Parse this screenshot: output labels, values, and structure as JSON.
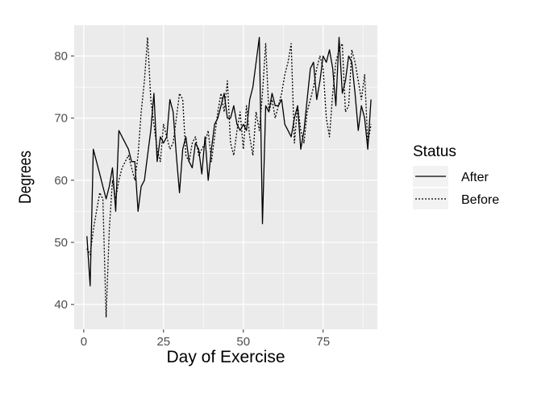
{
  "chart_data": {
    "type": "line",
    "title": "",
    "xlabel": "Day of Exercise",
    "ylabel": "Degrees",
    "xlim": [
      -3,
      92
    ],
    "ylim": [
      36,
      85
    ],
    "x_ticks": [
      0,
      25,
      50,
      75
    ],
    "y_ticks": [
      40,
      50,
      60,
      70,
      80
    ],
    "x_tick_labels": [
      "0",
      "25",
      "50",
      "75"
    ],
    "y_tick_labels": [
      "40",
      "50",
      "60",
      "70",
      "80"
    ],
    "grid": true,
    "legend": {
      "title": "Status",
      "placement": "right",
      "entries": [
        "After",
        "Before"
      ]
    },
    "series": [
      {
        "name": "After",
        "linetype": "solid",
        "values": [
          [
            1,
            51
          ],
          [
            2,
            43
          ],
          [
            3,
            65
          ],
          [
            4,
            63
          ],
          [
            5,
            61
          ],
          [
            6,
            59
          ],
          [
            7,
            57
          ],
          [
            8,
            59
          ],
          [
            9,
            62
          ],
          [
            10,
            55
          ],
          [
            11,
            68
          ],
          [
            12,
            67
          ],
          [
            13,
            66
          ],
          [
            14,
            65
          ],
          [
            15,
            63
          ],
          [
            16,
            63
          ],
          [
            17,
            55
          ],
          [
            18,
            59
          ],
          [
            19,
            60
          ],
          [
            20,
            64
          ],
          [
            21,
            68
          ],
          [
            22,
            74
          ],
          [
            23,
            63
          ],
          [
            24,
            67
          ],
          [
            25,
            66
          ],
          [
            26,
            67
          ],
          [
            27,
            73
          ],
          [
            28,
            71
          ],
          [
            29,
            64
          ],
          [
            30,
            58
          ],
          [
            31,
            65
          ],
          [
            32,
            67
          ],
          [
            33,
            63
          ],
          [
            34,
            62
          ],
          [
            35,
            66
          ],
          [
            36,
            65
          ],
          [
            37,
            61
          ],
          [
            38,
            67
          ],
          [
            39,
            60
          ],
          [
            40,
            65
          ],
          [
            41,
            69
          ],
          [
            42,
            70
          ],
          [
            43,
            72
          ],
          [
            44,
            74
          ],
          [
            45,
            70
          ],
          [
            46,
            70
          ],
          [
            47,
            72
          ],
          [
            48,
            69
          ],
          [
            49,
            68
          ],
          [
            50,
            69
          ],
          [
            51,
            68
          ],
          [
            52,
            73
          ],
          [
            53,
            75
          ],
          [
            54,
            79
          ],
          [
            55,
            83
          ],
          [
            56,
            53
          ],
          [
            57,
            72
          ],
          [
            58,
            71
          ],
          [
            59,
            74
          ],
          [
            60,
            72
          ],
          [
            61,
            72
          ],
          [
            62,
            73
          ],
          [
            63,
            69
          ],
          [
            64,
            68
          ],
          [
            65,
            67
          ],
          [
            66,
            70
          ],
          [
            67,
            72
          ],
          [
            68,
            65
          ],
          [
            69,
            68
          ],
          [
            70,
            73
          ],
          [
            71,
            78
          ],
          [
            72,
            79
          ],
          [
            73,
            73
          ],
          [
            74,
            76
          ],
          [
            75,
            80
          ],
          [
            76,
            79
          ],
          [
            77,
            81
          ],
          [
            78,
            78
          ],
          [
            79,
            72
          ],
          [
            80,
            83
          ],
          [
            81,
            74
          ],
          [
            82,
            76
          ],
          [
            83,
            80
          ],
          [
            84,
            79
          ],
          [
            85,
            74
          ],
          [
            86,
            68
          ],
          [
            87,
            72
          ],
          [
            88,
            70
          ],
          [
            89,
            65
          ],
          [
            90,
            73
          ]
        ]
      },
      {
        "name": "Before",
        "linetype": "dotted",
        "values": [
          [
            1,
            49
          ],
          [
            2,
            48
          ],
          [
            3,
            52
          ],
          [
            4,
            55
          ],
          [
            5,
            58
          ],
          [
            6,
            57
          ],
          [
            7,
            38
          ],
          [
            8,
            52
          ],
          [
            9,
            60
          ],
          [
            10,
            57
          ],
          [
            11,
            60
          ],
          [
            12,
            62
          ],
          [
            13,
            63
          ],
          [
            14,
            64
          ],
          [
            15,
            62
          ],
          [
            16,
            60
          ],
          [
            17,
            64
          ],
          [
            18,
            71
          ],
          [
            19,
            76
          ],
          [
            20,
            83
          ],
          [
            21,
            73
          ],
          [
            22,
            69
          ],
          [
            23,
            65
          ],
          [
            24,
            63
          ],
          [
            25,
            69
          ],
          [
            26,
            67
          ],
          [
            27,
            65
          ],
          [
            28,
            66
          ],
          [
            29,
            70
          ],
          [
            30,
            74
          ],
          [
            31,
            73
          ],
          [
            32,
            64
          ],
          [
            33,
            63
          ],
          [
            34,
            66
          ],
          [
            35,
            67
          ],
          [
            36,
            64
          ],
          [
            37,
            65
          ],
          [
            38,
            66
          ],
          [
            39,
            68
          ],
          [
            40,
            63
          ],
          [
            41,
            67
          ],
          [
            42,
            71
          ],
          [
            43,
            74
          ],
          [
            44,
            71
          ],
          [
            45,
            76
          ],
          [
            46,
            66
          ],
          [
            47,
            64
          ],
          [
            48,
            68
          ],
          [
            49,
            71
          ],
          [
            50,
            65
          ],
          [
            51,
            72
          ],
          [
            52,
            67
          ],
          [
            53,
            64
          ],
          [
            54,
            71
          ],
          [
            55,
            68
          ],
          [
            56,
            74
          ],
          [
            57,
            82
          ],
          [
            58,
            71
          ],
          [
            59,
            73
          ],
          [
            60,
            70
          ],
          [
            61,
            72
          ],
          [
            62,
            74
          ],
          [
            63,
            77
          ],
          [
            64,
            79
          ],
          [
            65,
            82
          ],
          [
            66,
            66
          ],
          [
            67,
            72
          ],
          [
            68,
            68
          ],
          [
            69,
            66
          ],
          [
            70,
            71
          ],
          [
            71,
            73
          ],
          [
            72,
            75
          ],
          [
            73,
            78
          ],
          [
            74,
            80
          ],
          [
            75,
            78
          ],
          [
            76,
            70
          ],
          [
            77,
            67
          ],
          [
            78,
            74
          ],
          [
            79,
            79
          ],
          [
            80,
            81
          ],
          [
            81,
            82
          ],
          [
            82,
            71
          ],
          [
            83,
            72
          ],
          [
            84,
            81
          ],
          [
            85,
            79
          ],
          [
            86,
            76
          ],
          [
            87,
            73
          ],
          [
            88,
            77
          ],
          [
            89,
            66
          ],
          [
            90,
            69
          ]
        ]
      }
    ]
  }
}
